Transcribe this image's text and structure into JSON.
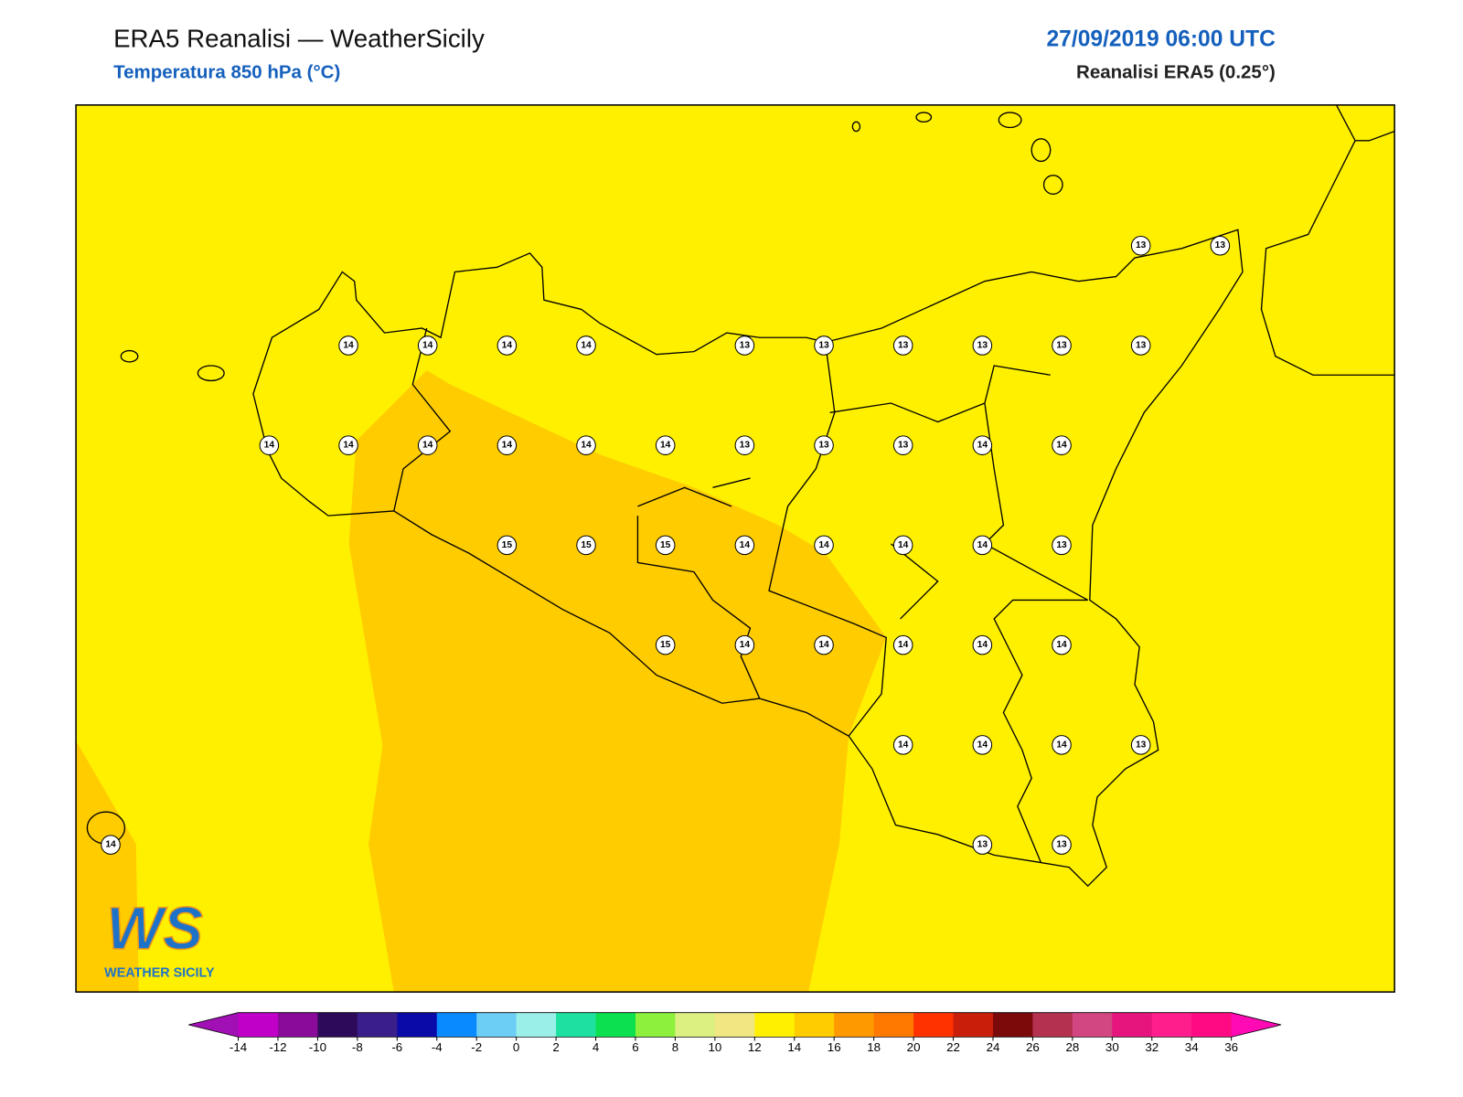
{
  "header": {
    "title": "ERA5 Reanalisi — WeatherSicily",
    "subtitle": "Temperatura 850 hPa (°C)",
    "date": "27/09/2019 06:00 UTC",
    "source": "Reanalisi ERA5 (0.25°)"
  },
  "stations": {
    "rows": [
      [
        null,
        null,
        null,
        null,
        null,
        null,
        null,
        null,
        null,
        null,
        null,
        null,
        null,
        13,
        13
      ],
      [
        null,
        null,
        null,
        14,
        14,
        14,
        14,
        null,
        13,
        13,
        13,
        13,
        13,
        13,
        null
      ],
      [
        null,
        null,
        14,
        14,
        14,
        14,
        14,
        14,
        13,
        13,
        13,
        14,
        14,
        null,
        null
      ],
      [
        null,
        null,
        null,
        null,
        null,
        15,
        15,
        15,
        14,
        14,
        14,
        14,
        13,
        null,
        null
      ],
      [
        null,
        null,
        null,
        null,
        null,
        null,
        null,
        15,
        14,
        14,
        14,
        14,
        14,
        null,
        null
      ],
      [
        null,
        null,
        null,
        null,
        null,
        null,
        null,
        null,
        null,
        null,
        14,
        14,
        14,
        13,
        null
      ],
      [
        14,
        null,
        null,
        null,
        null,
        null,
        null,
        null,
        null,
        null,
        null,
        13,
        13,
        null,
        null
      ]
    ]
  },
  "colorbar": {
    "ticks": [
      -14,
      -12,
      -10,
      -8,
      -6,
      -4,
      -2,
      0,
      2,
      4,
      6,
      8,
      10,
      12,
      14,
      16,
      18,
      20,
      22,
      24,
      26,
      28,
      30,
      32,
      34,
      36
    ],
    "colors": [
      "#c000c8",
      "#8a0a9a",
      "#2e0a5a",
      "#3a1f8a",
      "#0a0aa8",
      "#0a8aff",
      "#6ccdf5",
      "#9af0e8",
      "#1ee0a0",
      "#0ae050",
      "#8cf03c",
      "#dcf082",
      "#f0e682",
      "#fff000",
      "#ffcc00",
      "#ff9900",
      "#ff7800",
      "#ff3200",
      "#c81e0a",
      "#7d0a0a",
      "#b43250",
      "#d24682",
      "#e6147d",
      "#ff1e8c",
      "#ff0a82"
    ],
    "extend_colors": [
      "#a010b4",
      "#ff0ab4"
    ]
  },
  "logo": {
    "mark": "WS",
    "text": "WEATHER SICILY"
  }
}
